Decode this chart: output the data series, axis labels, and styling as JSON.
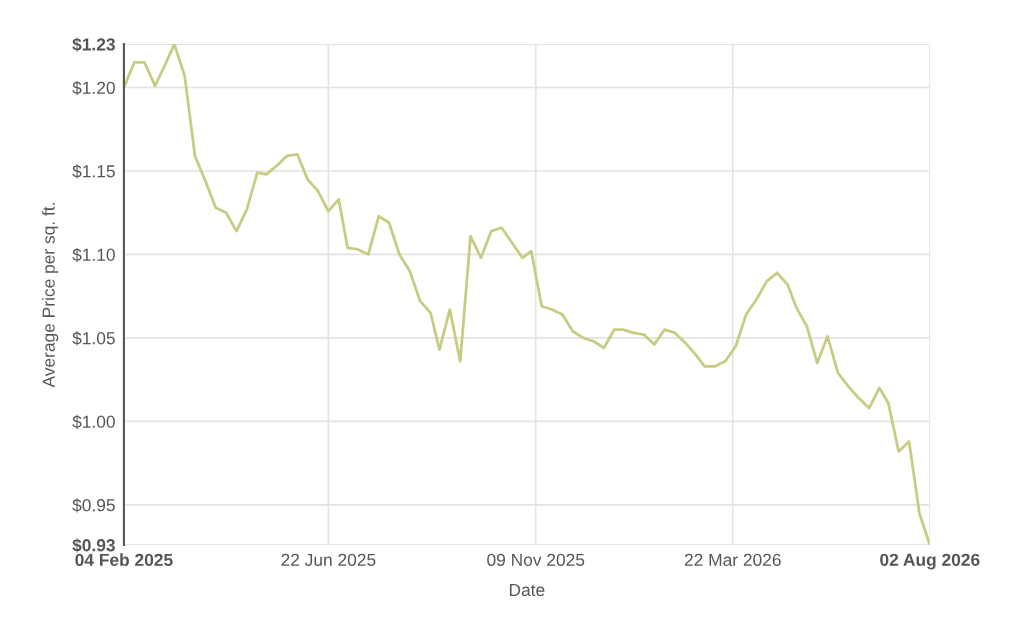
{
  "chart_data": {
    "type": "line",
    "xlabel": "Date",
    "ylabel": "Average Price per sq. ft.",
    "x": [
      "2025-02-04",
      "2025-02-11",
      "2025-02-18",
      "2025-02-25",
      "2025-03-04",
      "2025-03-10",
      "2025-03-17",
      "2025-03-24",
      "2025-03-31",
      "2025-04-07",
      "2025-04-14",
      "2025-04-21",
      "2025-04-28",
      "2025-05-05",
      "2025-05-11",
      "2025-05-18",
      "2025-05-25",
      "2025-06-01",
      "2025-06-08",
      "2025-06-15",
      "2025-06-22",
      "2025-06-29",
      "2025-07-05",
      "2025-07-12",
      "2025-07-19",
      "2025-07-26",
      "2025-08-02",
      "2025-08-09",
      "2025-08-16",
      "2025-08-23",
      "2025-08-30",
      "2025-09-05",
      "2025-09-12",
      "2025-09-19",
      "2025-09-26",
      "2025-10-03",
      "2025-10-10",
      "2025-10-17",
      "2025-10-24",
      "2025-10-31",
      "2025-11-06",
      "2025-11-13",
      "2025-11-20",
      "2025-11-27",
      "2025-12-04",
      "2025-12-11",
      "2025-12-18",
      "2025-12-25",
      "2026-01-01",
      "2026-01-07",
      "2026-01-14",
      "2026-01-21",
      "2026-01-28",
      "2026-02-04",
      "2026-02-11",
      "2026-02-18",
      "2026-02-25",
      "2026-03-03",
      "2026-03-10",
      "2026-03-17",
      "2026-03-24",
      "2026-03-31",
      "2026-04-07",
      "2026-04-14",
      "2026-04-21",
      "2026-04-28",
      "2026-05-04",
      "2026-05-11",
      "2026-05-18",
      "2026-05-25",
      "2026-06-01",
      "2026-06-08",
      "2026-06-15",
      "2026-06-22",
      "2026-06-29",
      "2026-07-05",
      "2026-07-12",
      "2026-07-19",
      "2026-07-26",
      "2026-08-02"
    ],
    "series": [
      {
        "color": "#c8cc82",
        "values": [
          1.2,
          1.215,
          1.215,
          1.201,
          1.214,
          1.226,
          1.207,
          1.159,
          1.144,
          1.128,
          1.125,
          1.114,
          1.127,
          1.149,
          1.148,
          1.153,
          1.159,
          1.16,
          1.145,
          1.138,
          1.126,
          1.133,
          1.104,
          1.103,
          1.1,
          1.123,
          1.119,
          1.1,
          1.09,
          1.072,
          1.065,
          1.043,
          1.067,
          1.036,
          1.111,
          1.098,
          1.114,
          1.116,
          1.107,
          1.098,
          1.102,
          1.069,
          1.067,
          1.064,
          1.054,
          1.05,
          1.048,
          1.044,
          1.055,
          1.055,
          1.053,
          1.052,
          1.046,
          1.055,
          1.053,
          1.047,
          1.04,
          1.033,
          1.033,
          1.036,
          1.045,
          1.064,
          1.073,
          1.084,
          1.089,
          1.082,
          1.068,
          1.057,
          1.035,
          1.051,
          1.029,
          1.021,
          1.014,
          1.008,
          1.02,
          1.011,
          0.982,
          0.988,
          0.945,
          0.926
        ]
      }
    ],
    "xlim": [
      "2025-02-04",
      "2026-08-02"
    ],
    "xticks": [
      {
        "value": "2025-02-04",
        "label": "04 Feb 2025"
      },
      {
        "value": "2025-06-22",
        "label": "22 Jun 2025"
      },
      {
        "value": "2025-11-09",
        "label": "09 Nov 2025"
      },
      {
        "value": "2026-03-22",
        "label": "22 Mar 2026"
      },
      {
        "value": "2026-08-02",
        "label": "02 Aug 2026"
      }
    ],
    "ylim": [
      0.926,
      1.226
    ],
    "yticks": [
      {
        "value": 0.926,
        "label": "$0.93"
      },
      {
        "value": 0.95,
        "label": "$0.95"
      },
      {
        "value": 1.0,
        "label": "$1.00"
      },
      {
        "value": 1.05,
        "label": "$1.05"
      },
      {
        "value": 1.1,
        "label": "$1.10"
      },
      {
        "value": 1.15,
        "label": "$1.15"
      },
      {
        "value": 1.2,
        "label": "$1.20"
      },
      {
        "value": 1.226,
        "label": "$1.23"
      }
    ],
    "grid": true,
    "marker": "none",
    "line_style": "solid"
  }
}
